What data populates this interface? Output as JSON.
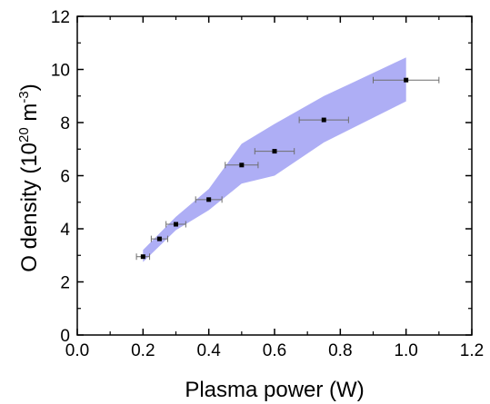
{
  "chart_data": {
    "type": "scatter",
    "xlabel": "Plasma power (W)",
    "ylabel": "O density (10",
    "ylabel_superscript": "20",
    "ylabel_unit": " m",
    "ylabel_unit_superscript": "-3",
    "ylabel_close": ")",
    "xlim": [
      0.0,
      1.2
    ],
    "ylim": [
      0,
      12
    ],
    "x_ticks": [
      0.0,
      0.2,
      0.4,
      0.6,
      0.8,
      1.0,
      1.2
    ],
    "x_tick_labels": [
      "0.0",
      "0.2",
      "0.4",
      "0.6",
      "0.8",
      "1.0",
      "1.2"
    ],
    "y_ticks": [
      0,
      2,
      4,
      6,
      8,
      10,
      12
    ],
    "y_tick_labels": [
      "0",
      "2",
      "4",
      "6",
      "8",
      "10",
      "12"
    ],
    "grid": false,
    "legend": "none",
    "colors": {
      "band_fill": "#aeaef5",
      "points": "#000000",
      "error_bars": "#6e6e6e",
      "axes": "#000000"
    },
    "band": {
      "x": [
        0.2,
        0.3,
        0.4,
        0.5,
        0.6,
        0.75,
        1.0
      ],
      "upper": [
        3.2,
        4.45,
        5.5,
        7.2,
        7.95,
        9.0,
        10.45
      ],
      "lower": [
        2.75,
        3.95,
        4.7,
        5.7,
        6.0,
        7.25,
        8.8
      ]
    },
    "series": [
      {
        "points": [
          {
            "x": 0.2,
            "y": 2.95,
            "xerr": 0.02
          },
          {
            "x": 0.25,
            "y": 3.62,
            "xerr": 0.025
          },
          {
            "x": 0.3,
            "y": 4.17,
            "xerr": 0.03
          },
          {
            "x": 0.4,
            "y": 5.1,
            "xerr": 0.04
          },
          {
            "x": 0.5,
            "y": 6.4,
            "xerr": 0.05
          },
          {
            "x": 0.6,
            "y": 6.92,
            "xerr": 0.06
          },
          {
            "x": 0.75,
            "y": 8.1,
            "xerr": 0.075
          },
          {
            "x": 1.0,
            "y": 9.6,
            "xerr": 0.1
          }
        ]
      }
    ]
  }
}
